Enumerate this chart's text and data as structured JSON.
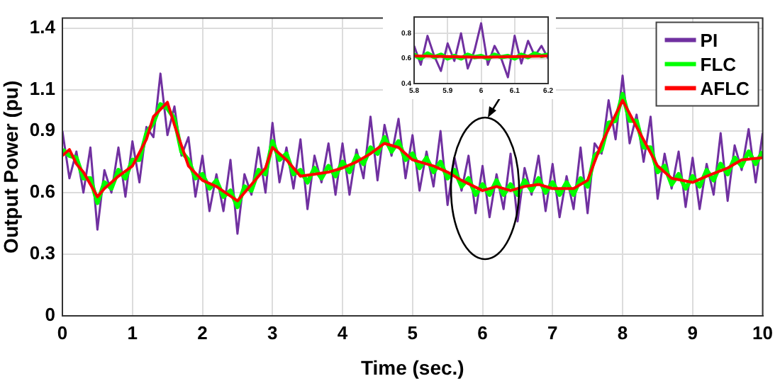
{
  "chart_data": [
    {
      "type": "line",
      "xlabel": "Time (sec.)",
      "ylabel": "Output Power (pu)",
      "xlim": [
        0,
        10
      ],
      "xticks": [
        0,
        1,
        2,
        3,
        4,
        5,
        6,
        7,
        8,
        9,
        10
      ],
      "ylim": [
        0,
        1.45
      ],
      "yticks": [
        0,
        0.3,
        0.6,
        0.9,
        1.1,
        1.4
      ],
      "grid": true,
      "legend": "top right",
      "x": [
        0,
        0.1,
        0.2,
        0.3,
        0.4,
        0.5,
        0.6,
        0.7,
        0.8,
        0.9,
        1,
        1.1,
        1.2,
        1.3,
        1.4,
        1.5,
        1.6,
        1.7,
        1.8,
        1.9,
        2,
        2.1,
        2.2,
        2.3,
        2.4,
        2.5,
        2.6,
        2.7,
        2.8,
        2.9,
        3,
        3.1,
        3.2,
        3.3,
        3.4,
        3.5,
        3.6,
        3.7,
        3.8,
        3.9,
        4,
        4.1,
        4.2,
        4.3,
        4.4,
        4.5,
        4.6,
        4.7,
        4.8,
        4.9,
        5,
        5.1,
        5.2,
        5.3,
        5.4,
        5.5,
        5.6,
        5.7,
        5.8,
        5.9,
        6,
        6.1,
        6.2,
        6.3,
        6.4,
        6.5,
        6.6,
        6.7,
        6.8,
        6.9,
        7,
        7.1,
        7.2,
        7.3,
        7.4,
        7.5,
        7.6,
        7.7,
        7.8,
        7.9,
        8,
        8.1,
        8.2,
        8.3,
        8.4,
        8.5,
        8.6,
        8.7,
        8.8,
        8.9,
        9,
        9.1,
        9.2,
        9.3,
        9.4,
        9.5,
        9.6,
        9.7,
        9.8,
        9.9,
        10
      ],
      "series": [
        {
          "name": "PI",
          "color": "#7030a0",
          "values": [
            0.9,
            0.67,
            0.8,
            0.6,
            0.82,
            0.42,
            0.71,
            0.6,
            0.82,
            0.58,
            0.85,
            0.65,
            0.92,
            0.87,
            1.18,
            0.88,
            1.02,
            0.78,
            0.87,
            0.58,
            0.78,
            0.51,
            0.69,
            0.51,
            0.76,
            0.4,
            0.69,
            0.59,
            0.82,
            0.6,
            0.94,
            0.65,
            0.82,
            0.62,
            0.86,
            0.52,
            0.78,
            0.65,
            0.84,
            0.59,
            0.84,
            0.59,
            0.81,
            0.67,
            0.97,
            0.66,
            0.93,
            0.78,
            0.96,
            0.67,
            0.88,
            0.61,
            0.8,
            0.63,
            0.9,
            0.54,
            0.77,
            0.61,
            0.78,
            0.5,
            0.73,
            0.48,
            0.69,
            0.52,
            0.79,
            0.46,
            0.72,
            0.59,
            0.78,
            0.51,
            0.74,
            0.48,
            0.68,
            0.52,
            0.82,
            0.5,
            0.84,
            0.79,
            1.05,
            0.86,
            1.17,
            0.84,
            0.98,
            0.75,
            0.97,
            0.57,
            0.79,
            0.62,
            0.8,
            0.53,
            0.77,
            0.52,
            0.74,
            0.59,
            0.89,
            0.56,
            0.83,
            0.71,
            0.91,
            0.65,
            0.89
          ]
        },
        {
          "name": "FLC",
          "color": "#00ff00",
          "values": [
            0.81,
            0.78,
            0.77,
            0.67,
            0.67,
            0.55,
            0.65,
            0.62,
            0.71,
            0.67,
            0.76,
            0.76,
            0.89,
            0.94,
            1.03,
            1.01,
            0.96,
            0.8,
            0.76,
            0.67,
            0.69,
            0.62,
            0.66,
            0.58,
            0.61,
            0.53,
            0.63,
            0.61,
            0.71,
            0.69,
            0.85,
            0.76,
            0.79,
            0.69,
            0.71,
            0.65,
            0.72,
            0.67,
            0.73,
            0.68,
            0.75,
            0.7,
            0.78,
            0.74,
            0.82,
            0.79,
            0.87,
            0.8,
            0.85,
            0.76,
            0.79,
            0.72,
            0.77,
            0.7,
            0.75,
            0.67,
            0.71,
            0.63,
            0.67,
            0.59,
            0.64,
            0.59,
            0.66,
            0.59,
            0.64,
            0.59,
            0.66,
            0.61,
            0.67,
            0.6,
            0.65,
            0.59,
            0.65,
            0.59,
            0.67,
            0.63,
            0.78,
            0.81,
            0.94,
            0.95,
            1.08,
            0.95,
            0.95,
            0.82,
            0.82,
            0.7,
            0.73,
            0.64,
            0.69,
            0.62,
            0.68,
            0.63,
            0.71,
            0.66,
            0.74,
            0.69,
            0.77,
            0.73,
            0.8,
            0.74,
            0.8
          ]
        },
        {
          "name": "AFLC",
          "color": "#ff0000",
          "x": [
            0,
            0.1,
            0.2,
            0.3,
            0.5,
            0.6,
            0.8,
            1,
            1.2,
            1.3,
            1.5,
            1.6,
            1.8,
            2,
            2.2,
            2.5,
            2.7,
            2.9,
            3,
            3.2,
            3.4,
            3.6,
            3.8,
            4,
            4.2,
            4.4,
            4.6,
            4.8,
            5,
            5.3,
            5.5,
            5.7,
            6,
            6.2,
            6.4,
            6.6,
            6.8,
            7,
            7.3,
            7.5,
            7.7,
            7.9,
            8,
            8.2,
            8.5,
            8.7,
            9,
            9.2,
            9.5,
            9.7,
            10
          ],
          "values": [
            0.78,
            0.81,
            0.74,
            0.7,
            0.58,
            0.62,
            0.68,
            0.73,
            0.86,
            0.97,
            1.04,
            0.93,
            0.73,
            0.66,
            0.63,
            0.56,
            0.64,
            0.72,
            0.82,
            0.76,
            0.68,
            0.69,
            0.7,
            0.72,
            0.75,
            0.79,
            0.84,
            0.82,
            0.76,
            0.73,
            0.7,
            0.66,
            0.61,
            0.63,
            0.61,
            0.63,
            0.64,
            0.62,
            0.62,
            0.66,
            0.84,
            0.98,
            1.05,
            0.92,
            0.73,
            0.67,
            0.65,
            0.68,
            0.72,
            0.76,
            0.77
          ]
        }
      ]
    },
    {
      "type": "line",
      "xlim": [
        5.8,
        6.2
      ],
      "xticks": [
        5.8,
        5.9,
        6,
        6.1,
        6.2
      ],
      "ylim": [
        0.4,
        0.93
      ],
      "yticks": [
        0.4,
        0.6,
        0.8
      ],
      "grid": true,
      "x": [
        5.8,
        5.82,
        5.84,
        5.86,
        5.88,
        5.9,
        5.92,
        5.94,
        5.96,
        5.98,
        6,
        6.02,
        6.04,
        6.06,
        6.08,
        6.1,
        6.12,
        6.14,
        6.16,
        6.18,
        6.2
      ],
      "series": [
        {
          "color": "#7030a0",
          "values": [
            0.7,
            0.55,
            0.78,
            0.62,
            0.5,
            0.72,
            0.58,
            0.8,
            0.52,
            0.66,
            0.88,
            0.55,
            0.7,
            0.6,
            0.45,
            0.78,
            0.56,
            0.74,
            0.62,
            0.7,
            0.6
          ]
        },
        {
          "color": "#00ff00",
          "values": [
            0.63,
            0.6,
            0.64,
            0.61,
            0.63,
            0.6,
            0.62,
            0.6,
            0.63,
            0.61,
            0.62,
            0.6,
            0.63,
            0.61,
            0.62,
            0.6,
            0.63,
            0.61,
            0.64,
            0.62,
            0.63
          ]
        },
        {
          "color": "#ff0000",
          "x": [
            5.8,
            6,
            6.2
          ],
          "values": [
            0.62,
            0.61,
            0.62
          ]
        }
      ]
    }
  ]
}
